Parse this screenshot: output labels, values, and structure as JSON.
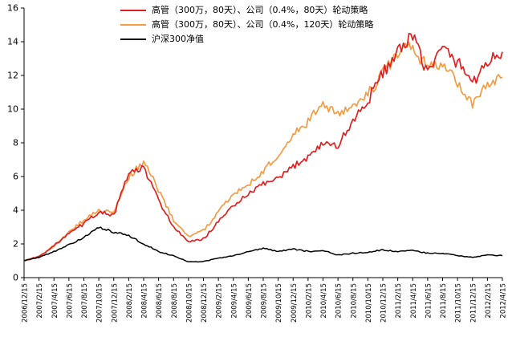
{
  "chart_data": {
    "type": "line",
    "title": "",
    "xlabel": "",
    "ylabel": "",
    "ylim": [
      0,
      16
    ],
    "y_ticks": [
      0,
      2,
      4,
      6,
      8,
      10,
      12,
      14,
      16
    ],
    "grid": false,
    "legend_position": "top",
    "x_labels": [
      "2006/12/15",
      "2007/2/15",
      "2007/4/15",
      "2007/6/15",
      "2007/8/15",
      "2007/10/15",
      "2007/12/15",
      "2008/2/15",
      "2008/4/15",
      "2008/6/15",
      "2008/8/15",
      "2008/10/15",
      "2008/12/15",
      "2009/2/15",
      "2009/4/15",
      "2009/6/15",
      "2009/8/15",
      "2009/10/15",
      "2009/12/15",
      "2010/2/15",
      "2010/4/15",
      "2010/6/15",
      "2010/8/15",
      "2010/10/15",
      "2010/12/15",
      "2011/2/15",
      "2011/4/15",
      "2011/6/15",
      "2011/8/15",
      "2011/10/15",
      "2011/12/15",
      "2012/2/15",
      "2012/4/15"
    ],
    "series": [
      {
        "name": "高管（300万，80天）、公司（0.4%，80天）轮动策略",
        "color": "#e02020",
        "values": [
          1.0,
          1.25,
          1.9,
          2.6,
          3.2,
          3.9,
          3.7,
          6.2,
          6.5,
          4.6,
          3.0,
          2.1,
          2.3,
          3.3,
          4.3,
          4.9,
          5.6,
          5.8,
          6.6,
          7.2,
          8.0,
          7.8,
          9.3,
          10.5,
          12.2,
          13.3,
          14.3,
          12.2,
          13.6,
          12.8,
          11.6,
          12.8,
          13.4
        ]
      },
      {
        "name": "高管（300万，80天）、公司（0.4%，120天）轮动策略",
        "color": "#f59b42",
        "values": [
          1.0,
          1.25,
          1.9,
          2.7,
          3.4,
          4.0,
          3.9,
          6.0,
          6.9,
          5.2,
          3.4,
          2.4,
          2.8,
          3.9,
          5.0,
          5.5,
          6.3,
          7.3,
          8.4,
          9.3,
          10.2,
          9.6,
          10.1,
          10.9,
          12.1,
          13.4,
          13.7,
          12.4,
          12.9,
          11.6,
          10.4,
          11.3,
          11.9
        ]
      },
      {
        "name": "沪深300净值",
        "color": "#000000",
        "values": [
          1.0,
          1.2,
          1.55,
          1.95,
          2.4,
          3.0,
          2.7,
          2.5,
          2.0,
          1.55,
          1.3,
          0.95,
          0.95,
          1.15,
          1.3,
          1.55,
          1.75,
          1.55,
          1.7,
          1.55,
          1.6,
          1.35,
          1.45,
          1.5,
          1.65,
          1.55,
          1.6,
          1.45,
          1.45,
          1.3,
          1.2,
          1.35,
          1.3
        ]
      }
    ]
  }
}
